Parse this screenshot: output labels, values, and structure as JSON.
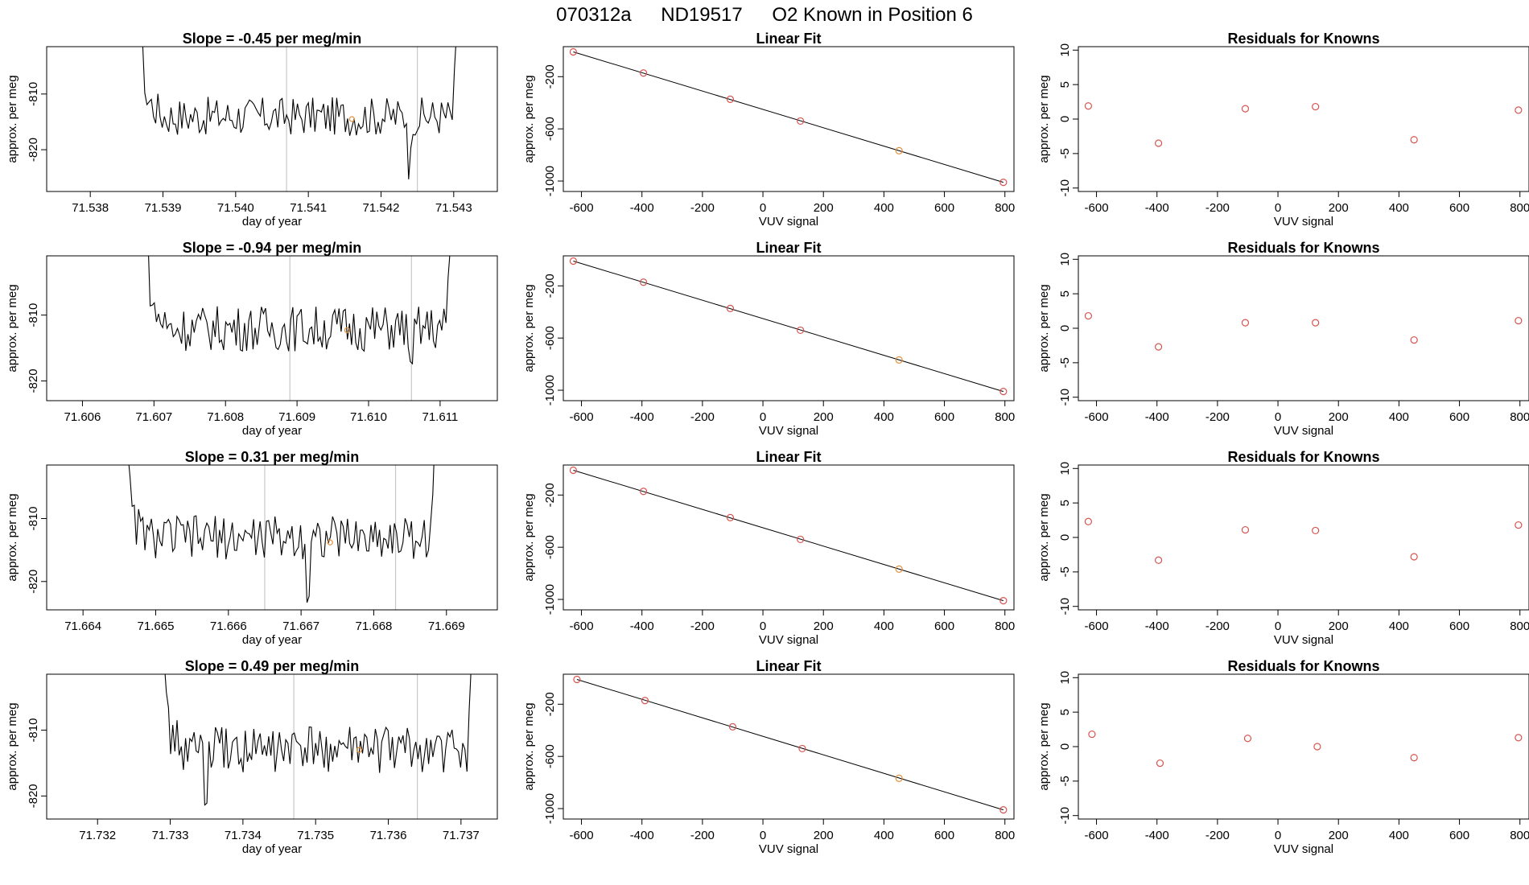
{
  "figure": {
    "title": {
      "run": "070312a",
      "tank": "ND19517",
      "desc": "O2 Known in Position  6"
    }
  },
  "colors": {
    "line": "#000000",
    "known_point": "#e3903a",
    "residual_point": "#d9534f",
    "marker_line": "#c8c8c8",
    "fit_point": "#d9534f"
  },
  "chart_data": [
    {
      "type": "line",
      "panel": "timeseries",
      "row": 1,
      "title": "Slope =  -0.45  per meg/min",
      "xlabel": "day of year",
      "ylabel": "approx. per meg",
      "xlim": [
        71.5374,
        71.5436
      ],
      "ylim": [
        -827.5,
        -801.5
      ],
      "xticks": [
        "71.538",
        "71.539",
        "71.540",
        "71.541",
        "71.542",
        "71.543"
      ],
      "xtick_values": [
        71.538,
        71.539,
        71.54,
        71.541,
        71.542,
        71.543
      ],
      "yticks": [
        "-810",
        "-820"
      ],
      "ytick_values": [
        -810,
        -820
      ],
      "series_start": 71.5386,
      "series_end": 71.5431,
      "series_mean": -814,
      "spike_at": 71.5424,
      "vlines": [
        71.5407,
        71.5425
      ],
      "known_point": {
        "x": 71.5416,
        "y": -814.5
      }
    },
    {
      "type": "line",
      "panel": "linear_fit",
      "row": 1,
      "title": "Linear Fit",
      "xlabel": "VUV signal",
      "ylabel": "approx. per meg",
      "xlim": [
        -660,
        830
      ],
      "ylim": [
        -1080,
        30
      ],
      "xticks": [
        "-600",
        "-400",
        "-200",
        "0",
        "200",
        "400",
        "600",
        "800"
      ],
      "xtick_values": [
        -600,
        -400,
        -200,
        0,
        200,
        400,
        600,
        800
      ],
      "yticks": [
        "-200",
        "-600",
        "-1000"
      ],
      "ytick_values": [
        -200,
        -600,
        -1000
      ],
      "points": [
        [
          -627,
          -10
        ],
        [
          -395,
          -172
        ],
        [
          -108,
          -373
        ],
        [
          124,
          -540
        ],
        [
          450,
          -768
        ],
        [
          795,
          -1010
        ]
      ],
      "known_index": 4
    },
    {
      "type": "scatter",
      "panel": "residuals",
      "row": 1,
      "title": "Residuals for Knowns",
      "xlabel": "VUV signal",
      "ylabel": "approx. per meg",
      "xlim": [
        -660,
        830
      ],
      "ylim": [
        -10.5,
        10.5
      ],
      "xticks": [
        "-600",
        "-400",
        "-200",
        "0",
        "200",
        "400",
        "600",
        "800"
      ],
      "xtick_values": [
        -600,
        -400,
        -200,
        0,
        200,
        400,
        600,
        800
      ],
      "yticks": [
        "-10",
        "-5",
        "0",
        "5",
        "10"
      ],
      "ytick_values": [
        -10,
        -5,
        0,
        5,
        10
      ],
      "points": [
        [
          -627,
          1.9
        ],
        [
          -395,
          -3.5
        ],
        [
          -108,
          1.5
        ],
        [
          124,
          1.8
        ],
        [
          450,
          -3.0
        ],
        [
          795,
          1.3
        ]
      ]
    },
    {
      "type": "line",
      "panel": "timeseries",
      "row": 2,
      "title": "Slope =  -0.94  per meg/min",
      "xlabel": "day of year",
      "ylabel": "approx. per meg",
      "xlim": [
        71.6055,
        71.6118
      ],
      "ylim": [
        -823,
        -801
      ],
      "xticks": [
        "71.606",
        "71.607",
        "71.608",
        "71.609",
        "71.610",
        "71.611"
      ],
      "xtick_values": [
        71.606,
        71.607,
        71.608,
        71.609,
        71.61,
        71.611
      ],
      "yticks": [
        "-810",
        "-820"
      ],
      "ytick_values": [
        -810,
        -820
      ],
      "series_start": 71.6068,
      "series_end": 71.6112,
      "series_mean": -812,
      "spike_at": 71.6106,
      "vlines": [
        71.6089,
        71.6106
      ],
      "known_point": {
        "x": 71.6097,
        "y": -812.3
      }
    },
    {
      "type": "line",
      "panel": "linear_fit",
      "row": 2,
      "title": "Linear Fit",
      "xlabel": "VUV signal",
      "ylabel": "approx. per meg",
      "xlim": [
        -660,
        830
      ],
      "ylim": [
        -1080,
        30
      ],
      "xticks": [
        "-600",
        "-400",
        "-200",
        "0",
        "200",
        "400",
        "600",
        "800"
      ],
      "xtick_values": [
        -600,
        -400,
        -200,
        0,
        200,
        400,
        600,
        800
      ],
      "yticks": [
        "-200",
        "-600",
        "-1000"
      ],
      "ytick_values": [
        -200,
        -600,
        -1000
      ],
      "points": [
        [
          -627,
          -10
        ],
        [
          -395,
          -172
        ],
        [
          -108,
          -373
        ],
        [
          124,
          -540
        ],
        [
          450,
          -768
        ],
        [
          795,
          -1010
        ]
      ],
      "known_index": 4
    },
    {
      "type": "scatter",
      "panel": "residuals",
      "row": 2,
      "title": "Residuals for Knowns",
      "xlabel": "VUV signal",
      "ylabel": "approx. per meg",
      "xlim": [
        -660,
        830
      ],
      "ylim": [
        -10.5,
        10.5
      ],
      "xticks": [
        "-600",
        "-400",
        "-200",
        "0",
        "200",
        "400",
        "600",
        "800"
      ],
      "xtick_values": [
        -600,
        -400,
        -200,
        0,
        200,
        400,
        600,
        800
      ],
      "yticks": [
        "-10",
        "-5",
        "0",
        "5",
        "10"
      ],
      "ytick_values": [
        -10,
        -5,
        0,
        5,
        10
      ],
      "points": [
        [
          -627,
          1.8
        ],
        [
          -395,
          -2.7
        ],
        [
          -108,
          0.8
        ],
        [
          124,
          0.8
        ],
        [
          450,
          -1.7
        ],
        [
          795,
          1.1
        ]
      ]
    },
    {
      "type": "line",
      "panel": "timeseries",
      "row": 3,
      "title": "Slope =  0.31  per meg/min",
      "xlabel": "day of year",
      "ylabel": "approx. per meg",
      "xlim": [
        71.6635,
        71.6697
      ],
      "ylim": [
        -824.5,
        -801.5
      ],
      "xticks": [
        "71.664",
        "71.665",
        "71.666",
        "71.667",
        "71.668",
        "71.669"
      ],
      "xtick_values": [
        71.664,
        71.665,
        71.666,
        71.667,
        71.668,
        71.669
      ],
      "yticks": [
        "-810",
        "-820"
      ],
      "ytick_values": [
        -810,
        -820
      ],
      "series_start": 71.6645,
      "series_end": 71.6689,
      "series_mean": -813,
      "spike_at": 71.6671,
      "vlines": [
        71.6665,
        71.6683
      ],
      "known_point": {
        "x": 71.6674,
        "y": -813.8
      }
    },
    {
      "type": "line",
      "panel": "linear_fit",
      "row": 3,
      "title": "Linear Fit",
      "xlabel": "VUV signal",
      "ylabel": "approx. per meg",
      "xlim": [
        -660,
        830
      ],
      "ylim": [
        -1080,
        30
      ],
      "xticks": [
        "-600",
        "-400",
        "-200",
        "0",
        "200",
        "400",
        "600",
        "800"
      ],
      "xtick_values": [
        -600,
        -400,
        -200,
        0,
        200,
        400,
        600,
        800
      ],
      "yticks": [
        "-200",
        "-600",
        "-1000"
      ],
      "ytick_values": [
        -200,
        -600,
        -1000
      ],
      "points": [
        [
          -627,
          -10
        ],
        [
          -395,
          -172
        ],
        [
          -108,
          -373
        ],
        [
          124,
          -540
        ],
        [
          450,
          -768
        ],
        [
          795,
          -1010
        ]
      ],
      "known_index": 4
    },
    {
      "type": "scatter",
      "panel": "residuals",
      "row": 3,
      "title": "Residuals for Knowns",
      "xlabel": "VUV signal",
      "ylabel": "approx. per meg",
      "xlim": [
        -660,
        830
      ],
      "ylim": [
        -10.5,
        10.5
      ],
      "xticks": [
        "-600",
        "-400",
        "-200",
        "0",
        "200",
        "400",
        "600",
        "800"
      ],
      "xtick_values": [
        -600,
        -400,
        -200,
        0,
        200,
        400,
        600,
        800
      ],
      "yticks": [
        "-10",
        "-5",
        "0",
        "5",
        "10"
      ],
      "ytick_values": [
        -10,
        -5,
        0,
        5,
        10
      ],
      "points": [
        [
          -627,
          2.3
        ],
        [
          -395,
          -3.3
        ],
        [
          -108,
          1.1
        ],
        [
          124,
          1.0
        ],
        [
          450,
          -2.8
        ],
        [
          795,
          1.8
        ]
      ]
    },
    {
      "type": "line",
      "panel": "timeseries",
      "row": 4,
      "title": "Slope =  0.49  per meg/min",
      "xlabel": "day of year",
      "ylabel": "approx. per meg",
      "xlim": [
        71.7313,
        71.7375
      ],
      "ylim": [
        -823.5,
        -801.5
      ],
      "xticks": [
        "71.732",
        "71.733",
        "71.734",
        "71.735",
        "71.736",
        "71.737"
      ],
      "xtick_values": [
        71.732,
        71.733,
        71.734,
        71.735,
        71.736,
        71.737
      ],
      "yticks": [
        "-810",
        "-820"
      ],
      "ytick_values": [
        -810,
        -820
      ],
      "series_start": 71.7328,
      "series_end": 71.7372,
      "series_mean": -813,
      "spike_at": 71.7335,
      "vlines": [
        71.7347,
        71.7364
      ],
      "known_point": {
        "x": 71.7356,
        "y": -813.0
      }
    },
    {
      "type": "line",
      "panel": "linear_fit",
      "row": 4,
      "title": "Linear Fit",
      "xlabel": "VUV signal",
      "ylabel": "approx. per meg",
      "xlim": [
        -660,
        830
      ],
      "ylim": [
        -1080,
        30
      ],
      "xticks": [
        "-600",
        "-400",
        "-200",
        "0",
        "200",
        "400",
        "600",
        "800"
      ],
      "xtick_values": [
        -600,
        -400,
        -200,
        0,
        200,
        400,
        600,
        800
      ],
      "yticks": [
        "-200",
        "-600",
        "-1000"
      ],
      "ytick_values": [
        -200,
        -600,
        -1000
      ],
      "points": [
        [
          -615,
          -10
        ],
        [
          -390,
          -172
        ],
        [
          -100,
          -373
        ],
        [
          130,
          -540
        ],
        [
          450,
          -768
        ],
        [
          795,
          -1010
        ]
      ],
      "known_index": 4
    },
    {
      "type": "scatter",
      "panel": "residuals",
      "row": 4,
      "title": "Residuals for Knowns",
      "xlabel": "VUV signal",
      "ylabel": "approx. per meg",
      "xlim": [
        -660,
        830
      ],
      "ylim": [
        -10.5,
        10.5
      ],
      "xticks": [
        "-600",
        "-400",
        "-200",
        "0",
        "200",
        "400",
        "600",
        "800"
      ],
      "xtick_values": [
        -600,
        -400,
        -200,
        0,
        200,
        400,
        600,
        800
      ],
      "yticks": [
        "-10",
        "-5",
        "0",
        "5",
        "10"
      ],
      "ytick_values": [
        -10,
        -5,
        0,
        5,
        10
      ],
      "points": [
        [
          -615,
          1.8
        ],
        [
          -390,
          -2.4
        ],
        [
          -100,
          1.2
        ],
        [
          130,
          0.0
        ],
        [
          450,
          -1.6
        ],
        [
          795,
          1.3
        ]
      ]
    }
  ]
}
